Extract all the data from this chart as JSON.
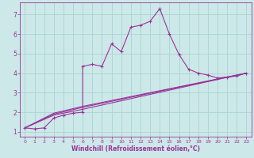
{
  "xlabel": "Windchill (Refroidissement éolien,°C)",
  "bg_color": "#cce8e8",
  "line_color": "#993399",
  "grid_color": "#aad4d4",
  "xlim": [
    -0.5,
    23.5
  ],
  "ylim": [
    0.75,
    7.6
  ],
  "xticks": [
    0,
    1,
    2,
    3,
    4,
    5,
    6,
    7,
    8,
    9,
    10,
    11,
    12,
    13,
    14,
    15,
    16,
    17,
    18,
    19,
    20,
    21,
    22,
    23
  ],
  "yticks": [
    1,
    2,
    3,
    4,
    5,
    6,
    7
  ],
  "main_x": [
    0,
    1,
    2,
    3,
    4,
    5,
    6,
    6,
    7,
    8,
    9,
    10,
    11,
    12,
    13,
    14,
    15,
    16,
    17,
    18,
    19,
    20,
    21,
    22,
    23
  ],
  "main_y": [
    1.2,
    1.15,
    1.2,
    1.7,
    1.85,
    1.95,
    2.0,
    4.35,
    4.45,
    4.35,
    5.5,
    5.1,
    6.35,
    6.45,
    6.65,
    7.3,
    6.0,
    4.95,
    4.2,
    4.0,
    3.9,
    3.75,
    3.8,
    3.85,
    4.0
  ],
  "line2_x": [
    0,
    3,
    6,
    23
  ],
  "line2_y": [
    1.2,
    1.85,
    2.15,
    4.0
  ],
  "line3_x": [
    0,
    3,
    6,
    23
  ],
  "line3_y": [
    1.2,
    1.9,
    2.25,
    4.0
  ],
  "line4_x": [
    0,
    3,
    6,
    23
  ],
  "line4_y": [
    1.2,
    1.95,
    2.3,
    4.0
  ],
  "xlabel_fontsize": 5.5,
  "tick_fontsize_x": 4.5,
  "tick_fontsize_y": 5.5
}
